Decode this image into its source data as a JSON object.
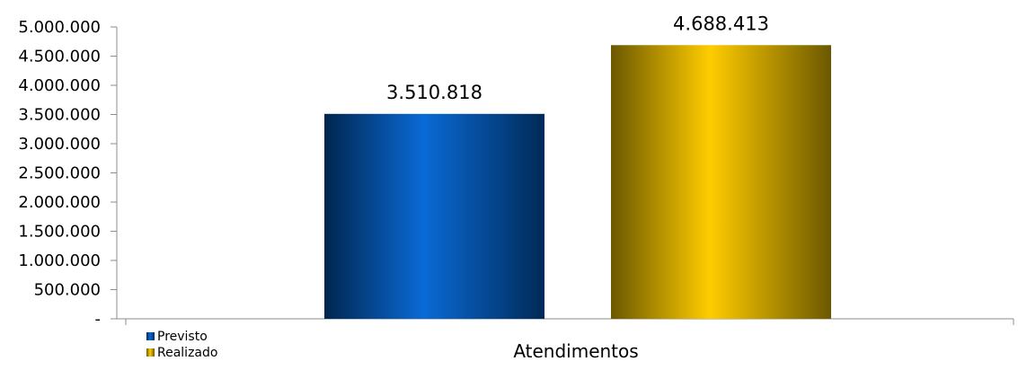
{
  "chart_data": {
    "type": "bar",
    "categories": [
      "Atendimentos"
    ],
    "xlabel": "Atendimentos",
    "ylabel": "",
    "ylim": [
      0,
      5000000
    ],
    "y_tick_values": [
      0,
      500000,
      1000000,
      1500000,
      2000000,
      2500000,
      3000000,
      3500000,
      4000000,
      4500000,
      5000000
    ],
    "y_tick_labels": [
      "-",
      "500.000",
      "1.000.000",
      "1.500.000",
      "2.000.000",
      "2.500.000",
      "3.000.000",
      "3.500.000",
      "4.000.000",
      "4.500.000",
      "5.000.000"
    ],
    "grid": false,
    "legend_position": "bottom-left",
    "series": [
      {
        "name": "Previsto",
        "values": [
          3510818
        ],
        "label": "3.510.818",
        "color": "#0a5cb8"
      },
      {
        "name": "Realizado",
        "values": [
          4688413
        ],
        "label": "4.688.413",
        "color": "#f2c200"
      }
    ]
  }
}
